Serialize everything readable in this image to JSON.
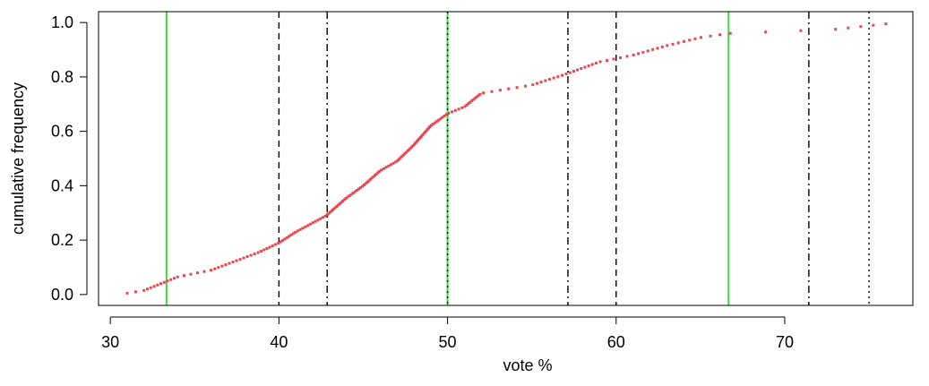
{
  "chart_data": {
    "type": "scatter",
    "title": "",
    "xlabel": "vote %",
    "ylabel": "cumulative frequency",
    "xlim": [
      29.3,
      77.6
    ],
    "ylim": [
      -0.04,
      1.04
    ],
    "xticks": [
      30,
      40,
      50,
      60,
      70
    ],
    "yticks": [
      0.0,
      0.2,
      0.4,
      0.6,
      0.8,
      1.0
    ],
    "ytick_labels": [
      "0.0",
      "0.2",
      "0.4",
      "0.6",
      "0.8",
      "1.0"
    ],
    "grid": false,
    "legend": "none",
    "point_color": "#e8474f",
    "ecdf": {
      "x_knots": [
        31.0,
        32.0,
        33.0,
        34.0,
        36.0,
        38.8,
        40.0,
        41.0,
        42.8,
        44.0,
        45.0,
        46.0,
        47.0,
        48.0,
        49.0,
        50.0,
        51.0,
        52.0,
        55.0,
        57.0,
        59.0,
        61.0,
        63.0,
        65.0,
        66.7,
        73.0,
        76.0
      ],
      "y_knots": [
        0.005,
        0.015,
        0.04,
        0.065,
        0.09,
        0.155,
        0.19,
        0.23,
        0.29,
        0.355,
        0.4,
        0.455,
        0.49,
        0.55,
        0.62,
        0.665,
        0.69,
        0.74,
        0.77,
        0.81,
        0.855,
        0.88,
        0.915,
        0.945,
        0.96,
        0.975,
        0.995
      ],
      "n_points": 200
    },
    "reference_lines": [
      {
        "x": 33.33,
        "style": "solid",
        "color": "#33e033"
      },
      {
        "x": 50.0,
        "style": "solid",
        "color": "#33e033"
      },
      {
        "x": 66.67,
        "style": "solid",
        "color": "#33e033"
      },
      {
        "x": 40.0,
        "style": "dashed",
        "color": "#000000"
      },
      {
        "x": 60.0,
        "style": "dashed",
        "color": "#000000"
      },
      {
        "x": 42.86,
        "style": "dashdot",
        "color": "#000000"
      },
      {
        "x": 57.14,
        "style": "dashdot",
        "color": "#000000"
      },
      {
        "x": 71.43,
        "style": "dashdot",
        "color": "#000000"
      },
      {
        "x": 50.0,
        "style": "dotted",
        "color": "#000000"
      },
      {
        "x": 75.0,
        "style": "dotted",
        "color": "#000000"
      }
    ]
  }
}
